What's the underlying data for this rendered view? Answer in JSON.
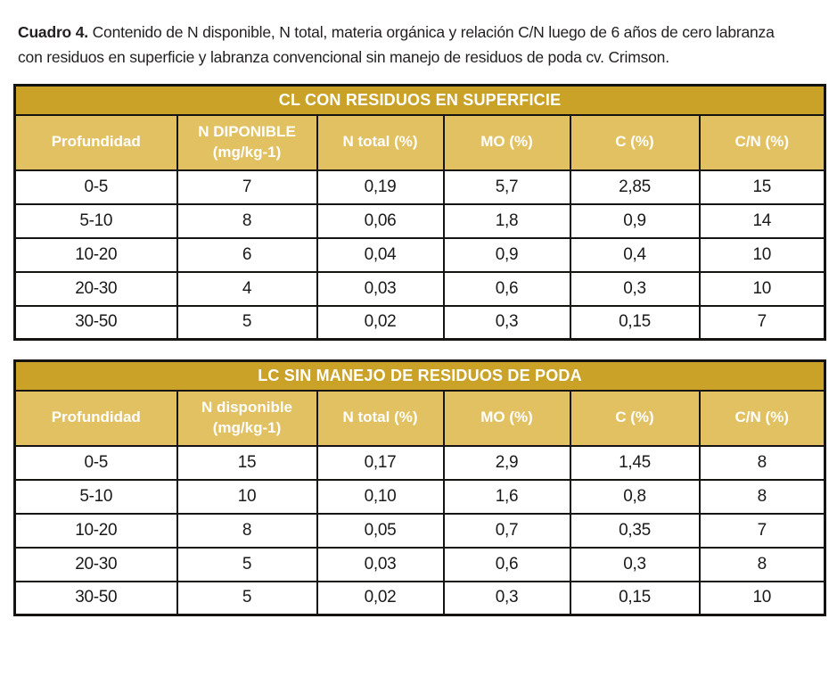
{
  "caption": {
    "label": "Cuadro 4.",
    "text": "Contenido de N disponible, N total, materia orgánica y relación C/N luego de 6 años de cero labranza con residuos en superficie y labranza convencional sin manejo de residuos de poda cv. Crimson."
  },
  "colors": {
    "title_band": "#c9a227",
    "header_band": "#e1c161",
    "border": "#151412",
    "header_text": "#ffffff",
    "cell_text": "#1a1a1a"
  },
  "tables": [
    {
      "title": "CL CON RESIDUOS EN SUPERFICIE",
      "columns": [
        "Profundidad",
        "N DIPONIBLE\n(mg/kg-1)",
        "N total (%)",
        "MO (%)",
        "C (%)",
        "C/N (%)"
      ],
      "rows": [
        [
          "0-5",
          "7",
          "0,19",
          "5,7",
          "2,85",
          "15"
        ],
        [
          "5-10",
          "8",
          "0,06",
          "1,8",
          "0,9",
          "14"
        ],
        [
          "10-20",
          "6",
          "0,04",
          "0,9",
          "0,4",
          "10"
        ],
        [
          "20-30",
          "4",
          "0,03",
          "0,6",
          "0,3",
          "10"
        ],
        [
          "30-50",
          "5",
          "0,02",
          "0,3",
          "0,15",
          "7"
        ]
      ]
    },
    {
      "title": "LC SIN MANEJO DE RESIDUOS DE PODA",
      "columns": [
        "Profundidad",
        "N disponible\n(mg/kg-1)",
        "N total (%)",
        "MO (%)",
        "C (%)",
        "C/N (%)"
      ],
      "rows": [
        [
          "0-5",
          "15",
          "0,17",
          "2,9",
          "1,45",
          "8"
        ],
        [
          "5-10",
          "10",
          "0,10",
          "1,6",
          "0,8",
          "8"
        ],
        [
          "10-20",
          "8",
          "0,05",
          "0,7",
          "0,35",
          "7"
        ],
        [
          "20-30",
          "5",
          "0,03",
          "0,6",
          "0,3",
          "8"
        ],
        [
          "30-50",
          "5",
          "0,02",
          "0,3",
          "0,15",
          "10"
        ]
      ]
    }
  ]
}
